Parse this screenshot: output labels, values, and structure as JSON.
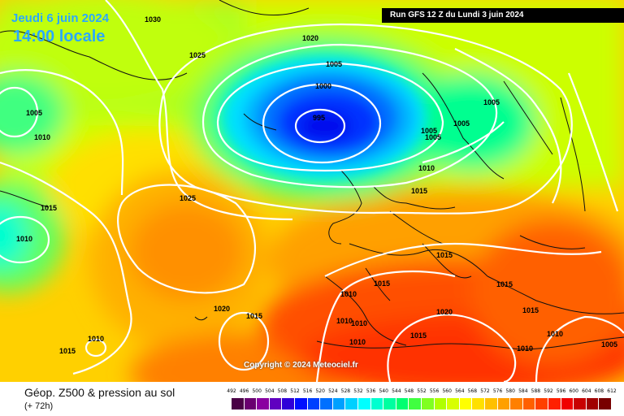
{
  "header": {
    "date_label": "Jeudi 6 juin 2024",
    "time_label": "14:00 locale",
    "run_label": "Run GFS 12 Z du Lundi 3 juin 2024"
  },
  "map": {
    "copyright": "Copyright © 2024 Meteociel.fr",
    "isobar_labels": [
      "1030",
      "1020",
      "1025",
      "1005",
      "1000",
      "995",
      "1005",
      "1010",
      "1005",
      "1005",
      "1005",
      "1005",
      "1010",
      "1015",
      "1025",
      "1015",
      "1010",
      "1015",
      "1010",
      "1015",
      "1020",
      "1015",
      "1010",
      "1015",
      "1010",
      "1010",
      "1020",
      "1015",
      "1015",
      "1015",
      "1010",
      "1010",
      "1010",
      "1005"
    ]
  },
  "footer": {
    "product_title": "Géop. Z500 & pression au sol",
    "lead_time": "(+ 72h)"
  },
  "legend": {
    "ticks": [
      "492",
      "496",
      "500",
      "504",
      "508",
      "512",
      "516",
      "520",
      "524",
      "528",
      "532",
      "536",
      "540",
      "544",
      "548",
      "552",
      "556",
      "560",
      "564",
      "568",
      "572",
      "576",
      "580",
      "584",
      "588",
      "592",
      "596",
      "600",
      "604",
      "608",
      "612"
    ],
    "colors": [
      "#4a0046",
      "#6a0070",
      "#8a00a0",
      "#6000c0",
      "#3000d8",
      "#0010ff",
      "#0040ff",
      "#0070ff",
      "#00a0ff",
      "#00d0ff",
      "#00ffff",
      "#00ffd0",
      "#00ffa0",
      "#00ff70",
      "#40ff40",
      "#80ff20",
      "#b0ff00",
      "#d8ff00",
      "#ffff00",
      "#ffe000",
      "#ffc000",
      "#ffa000",
      "#ff8000",
      "#ff6000",
      "#ff4000",
      "#ff2000",
      "#f00000",
      "#c80000",
      "#a00000",
      "#780000"
    ]
  }
}
